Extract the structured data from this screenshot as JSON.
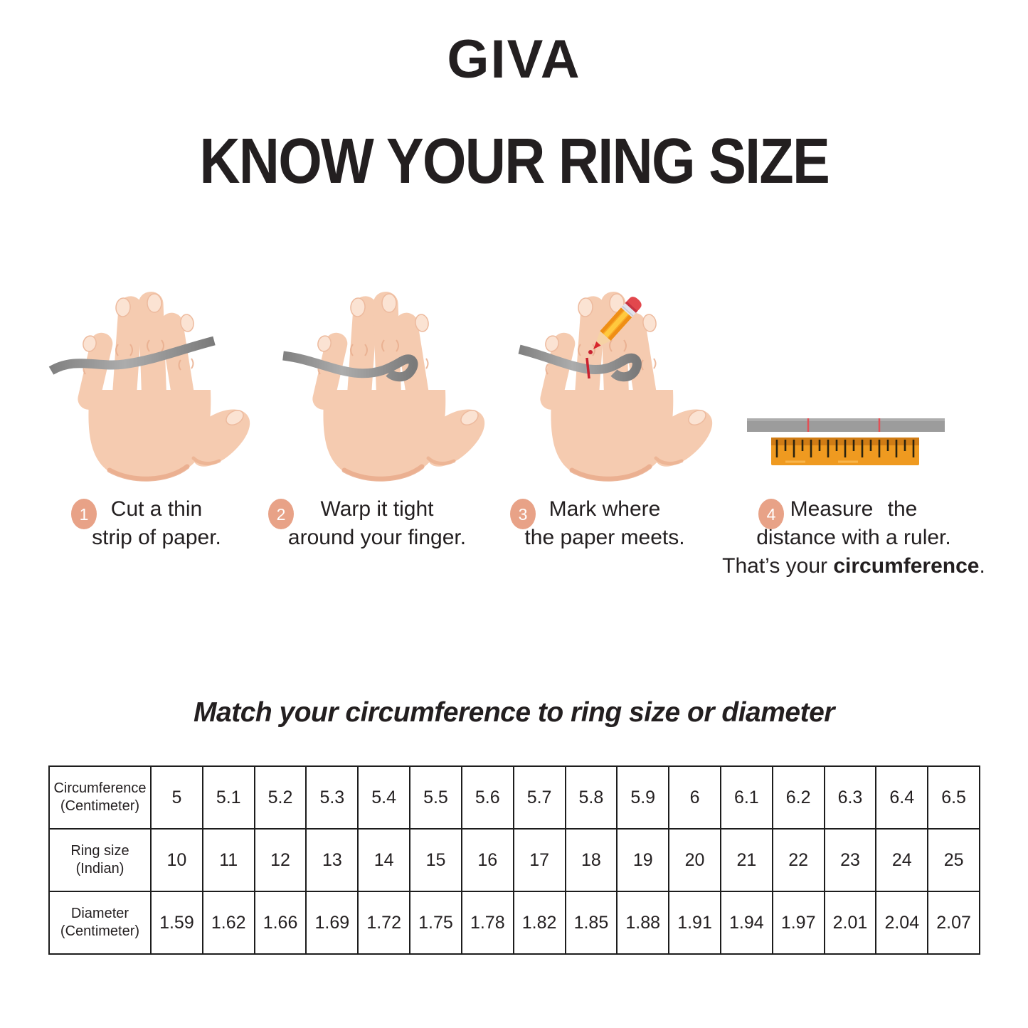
{
  "brand": "GIVA",
  "title": "KNOW YOUR RING SIZE",
  "steps": [
    {
      "badge": "1",
      "line1": "Cut a thin",
      "line2": "strip of paper."
    },
    {
      "badge": "2",
      "line1": "Warp it tight",
      "line2": "around your finger."
    },
    {
      "badge": "3",
      "line1": "Mark where",
      "line2": "the paper meets."
    },
    {
      "badge": "4",
      "line1": "Measure the",
      "line2": "distance with a ruler.",
      "line3_prefix": "That’s your ",
      "line3_bold": "circumference",
      "line3_suffix": "."
    }
  ],
  "table_title": "Match your circumference to ring size or diameter",
  "chart_data": {
    "type": "table",
    "rows": [
      {
        "label": [
          "Circumference",
          "(Centimeter)"
        ],
        "values": [
          "5",
          "5.1",
          "5.2",
          "5.3",
          "5.4",
          "5.5",
          "5.6",
          "5.7",
          "5.8",
          "5.9",
          "6",
          "6.1",
          "6.2",
          "6.3",
          "6.4",
          "6.5"
        ]
      },
      {
        "label": [
          "Ring size",
          "(Indian)"
        ],
        "values": [
          "10",
          "11",
          "12",
          "13",
          "14",
          "15",
          "16",
          "17",
          "18",
          "19",
          "20",
          "21",
          "22",
          "23",
          "24",
          "25"
        ]
      },
      {
        "label": [
          "Diameter",
          "(Centimeter)"
        ],
        "values": [
          "1.59",
          "1.62",
          "1.66",
          "1.69",
          "1.72",
          "1.75",
          "1.78",
          "1.82",
          "1.85",
          "1.88",
          "1.91",
          "1.94",
          "1.97",
          "2.01",
          "2.04",
          "2.07"
        ]
      }
    ]
  },
  "icons": {
    "step1": "hand-with-paper-strip",
    "step2": "hand-strip-wrapped-around-finger",
    "step3": "hand-pencil-marking-strip",
    "step4": "paper-strip-and-ruler"
  },
  "colors": {
    "text": "#231F20",
    "badge": "#E8A287",
    "badge_number": "#FFFFFF",
    "skin": "#F5CBB0",
    "skin_shade": "#E9AC8C",
    "nail": "#FBE3D3",
    "paper_strip_gray": "#9C9C9C",
    "ruler_orange": "#EF9A20",
    "ruler_orange_dark": "#D07C15",
    "mark_red": "#C8202F",
    "pencil_yellow": "#F9A825",
    "eraser_red": "#E2484D"
  }
}
